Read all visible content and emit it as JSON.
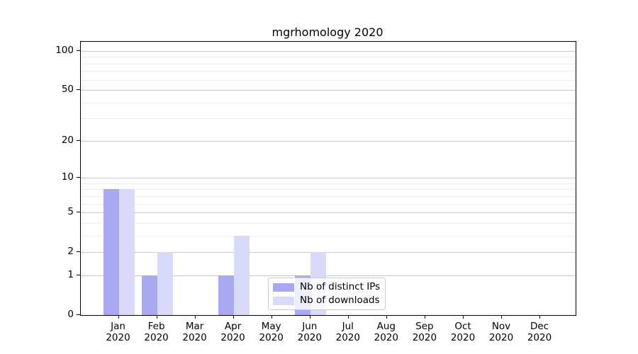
{
  "chart_data": {
    "type": "bar",
    "title": "mgrhomology 2020",
    "scale": "log1p",
    "grid": "horizontal",
    "legend_position": "lower-center",
    "categories": [
      "Jan",
      "Feb",
      "Mar",
      "Apr",
      "May",
      "Jun",
      "Jul",
      "Aug",
      "Sep",
      "Oct",
      "Nov",
      "Dec"
    ],
    "category_year": "2020",
    "series": [
      {
        "name": "Nb of distinct IPs",
        "color": "#a9a9f2",
        "values": [
          8,
          1,
          0,
          1,
          0,
          1,
          0,
          0,
          0,
          0,
          0,
          0
        ]
      },
      {
        "name": "Nb of downloads",
        "color": "#d9d9fa",
        "values": [
          8,
          2,
          0,
          3,
          0,
          2,
          0,
          0,
          0,
          0,
          0,
          0
        ]
      }
    ],
    "y_ticks": [
      0,
      1,
      2,
      5,
      10,
      20,
      50,
      100
    ],
    "y_minor_ticks": [
      3,
      4,
      6,
      7,
      8,
      9,
      30,
      40,
      60,
      70,
      80,
      90
    ],
    "ylim": [
      0,
      118
    ]
  },
  "colors": {
    "grid_major": "#c9c9c9",
    "grid_minor": "#ececec",
    "axis": "#000000",
    "background": "#ffffff"
  }
}
